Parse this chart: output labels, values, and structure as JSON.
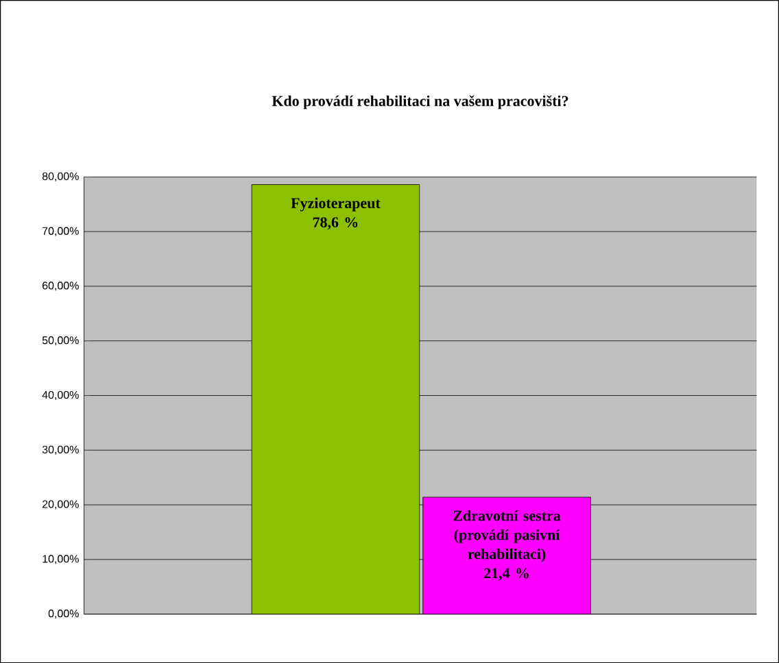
{
  "chart_data": {
    "type": "bar",
    "title": "Kdo provádí rehabilitaci na vašem pracovišti?",
    "categories": [
      "Fyzioterapeut",
      "Zdravotní sestra (provádí pasivní rehabilitaci)"
    ],
    "values": [
      78.6,
      21.4
    ],
    "colors": [
      "#8cc000",
      "#ff00ff"
    ],
    "value_labels": [
      "78,6 %",
      "21,4 %"
    ],
    "ylim": [
      0,
      80
    ],
    "yticks": [
      {
        "value": 0,
        "label": "0,00%"
      },
      {
        "value": 10,
        "label": "10,00%"
      },
      {
        "value": 20,
        "label": "20,00%"
      },
      {
        "value": 30,
        "label": "30,00%"
      },
      {
        "value": 40,
        "label": "40,00%"
      },
      {
        "value": 50,
        "label": "50,00%"
      },
      {
        "value": 60,
        "label": "60,00%"
      },
      {
        "value": 70,
        "label": "70,00%"
      },
      {
        "value": 80,
        "label": "80,00%"
      }
    ],
    "grid": "y"
  }
}
